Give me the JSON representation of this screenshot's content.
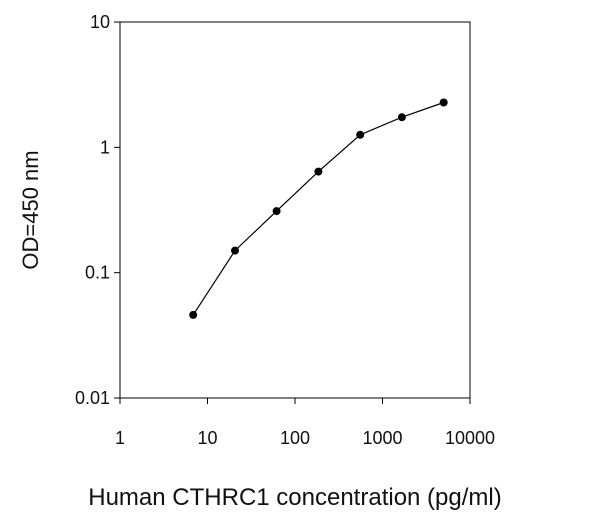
{
  "chart_data": {
    "type": "line",
    "xlabel": "Human CTHRC1 concentration (pg/ml)",
    "ylabel": "OD=450 nm",
    "xscale": "log",
    "yscale": "log",
    "xlim": [
      1,
      10000
    ],
    "ylim": [
      0.01,
      10
    ],
    "x_ticks": [
      1,
      10,
      100,
      1000,
      10000
    ],
    "x_tick_labels": [
      "1",
      "10",
      "100",
      "1000",
      "10000"
    ],
    "y_ticks": [
      0.01,
      0.1,
      1,
      10
    ],
    "y_tick_labels": [
      "0.01",
      "0.1",
      "1",
      "10"
    ],
    "grid": false,
    "legend": "none",
    "series": [
      {
        "x": [
          6.86,
          20.6,
          61.7,
          185.2,
          555.6,
          1666.7,
          5000
        ],
        "y": [
          0.046,
          0.15,
          0.31,
          0.64,
          1.26,
          1.74,
          2.28
        ]
      }
    ],
    "colors": {
      "line": "#000000",
      "marker": "#000000",
      "axis": "#000000"
    }
  }
}
